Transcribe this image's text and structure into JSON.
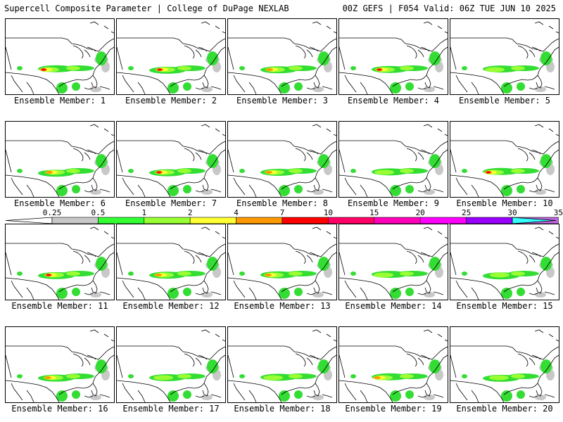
{
  "header": {
    "title": "Supercell Composite Parameter | College of DuPage NEXLAB",
    "valid": "00Z GEFS | F054 Valid: 06Z TUE JUN 10 2025"
  },
  "legend": {
    "ticks": [
      "0.25",
      "0.5",
      "1",
      "2",
      "4",
      "7",
      "10",
      "15",
      "20",
      "25",
      "30",
      "35"
    ],
    "colors": [
      "#c8c8c8",
      "#33ff33",
      "#99ff33",
      "#ffff33",
      "#ff9900",
      "#ff0000",
      "#ff0066",
      "#ff00bb",
      "#ff00ff",
      "#9900ff",
      "#bb66dd",
      "#33ffff"
    ]
  },
  "map_colors": {
    "coast": "#000000",
    "snow_blob": "#c8c8c8",
    "low": "#33dd33",
    "mid": "#99ff33",
    "high": "#ffff33",
    "orange": "#ff9900",
    "red": "#ff0000"
  },
  "members": [
    {
      "label": "Ensemble Member: 1",
      "intensity": 3
    },
    {
      "label": "Ensemble Member: 2",
      "intensity": 3
    },
    {
      "label": "Ensemble Member: 3",
      "intensity": 2
    },
    {
      "label": "Ensemble Member: 4",
      "intensity": 3
    },
    {
      "label": "Ensemble Member: 5",
      "intensity": 1
    },
    {
      "label": "Ensemble Member: 6",
      "intensity": 2
    },
    {
      "label": "Ensemble Member: 7",
      "intensity": 3
    },
    {
      "label": "Ensemble Member: 8",
      "intensity": 2
    },
    {
      "label": "Ensemble Member: 9",
      "intensity": 1
    },
    {
      "label": "Ensemble Member: 10",
      "intensity": 3
    },
    {
      "label": "Ensemble Member: 11",
      "intensity": 3
    },
    {
      "label": "Ensemble Member: 12",
      "intensity": 2
    },
    {
      "label": "Ensemble Member: 13",
      "intensity": 2
    },
    {
      "label": "Ensemble Member: 14",
      "intensity": 1
    },
    {
      "label": "Ensemble Member: 15",
      "intensity": 1
    },
    {
      "label": "Ensemble Member: 16",
      "intensity": 2
    },
    {
      "label": "Ensemble Member: 17",
      "intensity": 1
    },
    {
      "label": "Ensemble Member: 18",
      "intensity": 1
    },
    {
      "label": "Ensemble Member: 19",
      "intensity": 2
    },
    {
      "label": "Ensemble Member: 20",
      "intensity": 1
    }
  ]
}
